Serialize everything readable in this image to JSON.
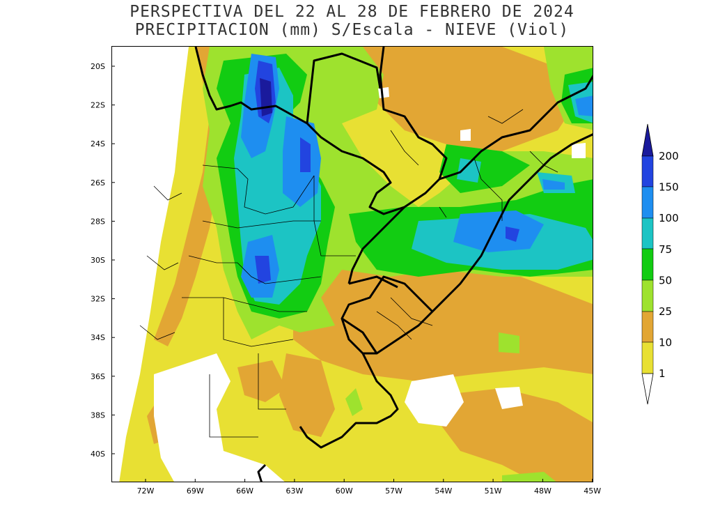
{
  "title": {
    "line1": "PERSPECTIVA DEL 22 AL 28 DE FEBRERO DE 2024",
    "line2": "PRECIPITACION (mm) S/Escala - NIEVE (Viol)"
  },
  "axes": {
    "lat_ticks": [
      "20S",
      "22S",
      "24S",
      "26S",
      "28S",
      "30S",
      "32S",
      "34S",
      "36S",
      "38S",
      "40S"
    ],
    "lon_ticks": [
      "72W",
      "69W",
      "66W",
      "63W",
      "60W",
      "57W",
      "54W",
      "51W",
      "48W",
      "45W"
    ]
  },
  "legend": {
    "levels": [
      "200",
      "150",
      "100",
      "75",
      "50",
      "25",
      "10",
      "1"
    ],
    "colors": {
      "above_200": "#1a1a9c",
      "150_200": "#2244e0",
      "100_150": "#1e8ef0",
      "75_100": "#1cc4c4",
      "50_75": "#12cc12",
      "25_50": "#9ee22e",
      "10_25": "#e2a634",
      "1_10": "#e8e033",
      "below_1": "#ffffff"
    }
  }
}
